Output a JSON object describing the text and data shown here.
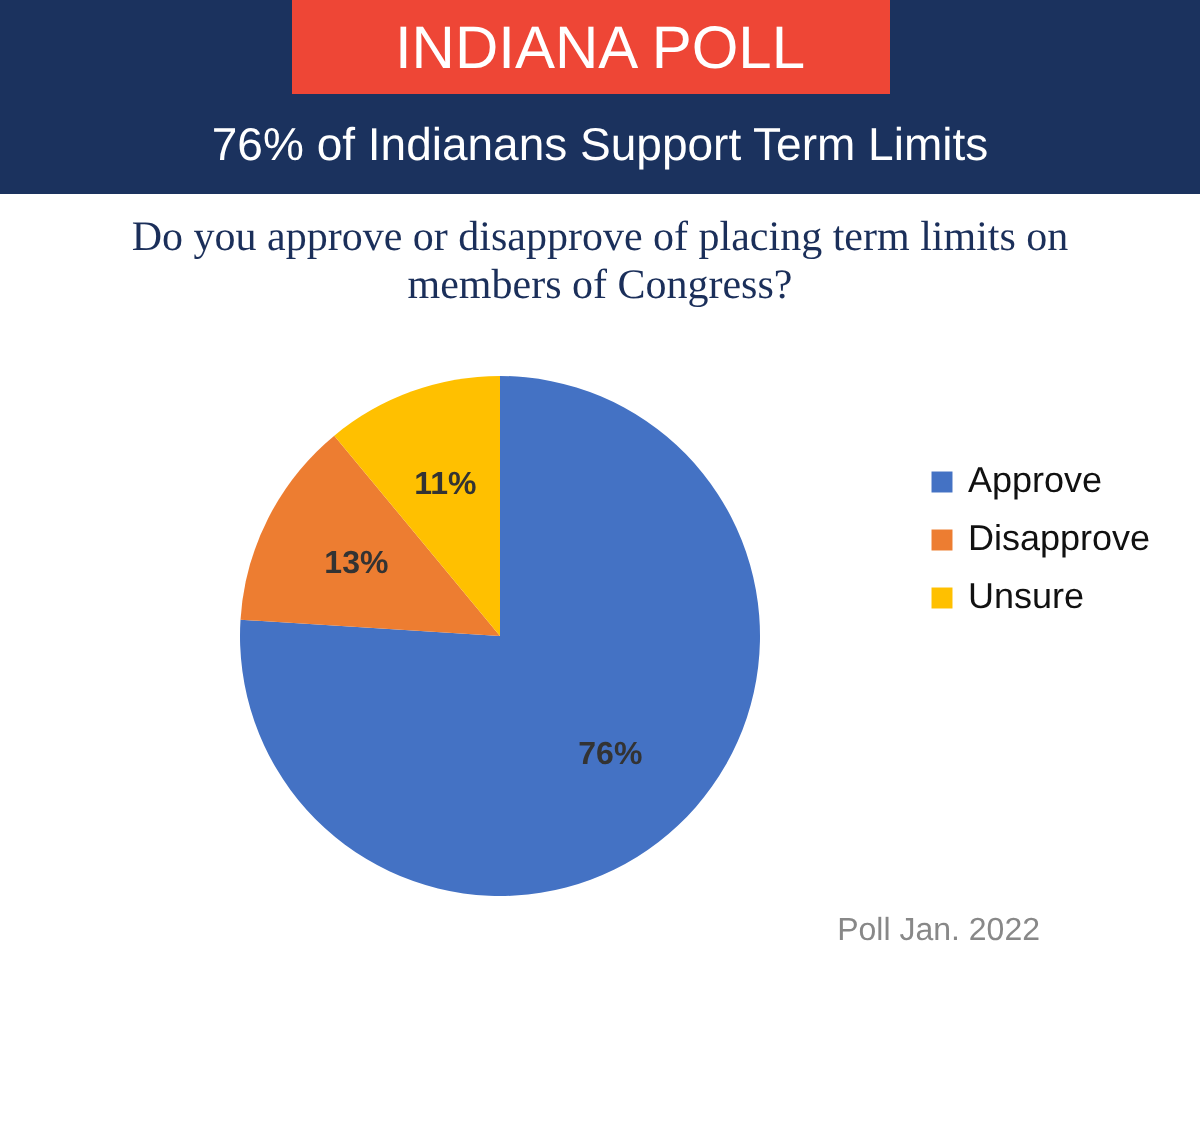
{
  "chart_data": {
    "type": "pie",
    "title": "INDIANA POLL",
    "subtitle": "76% of Indianans Support Term Limits",
    "annotations": [
      "Do you approve or disapprove of placing term limits on members of Congress?",
      "Poll Jan. 2022"
    ],
    "categories": [
      "Approve",
      "Disapprove",
      "Unsure"
    ],
    "values": [
      76,
      13,
      11
    ],
    "colors": [
      "#4472c4",
      "#ed7d31",
      "#ffc000"
    ],
    "value_labels": [
      "76%",
      "13%",
      "11%"
    ],
    "legend": "right"
  }
}
